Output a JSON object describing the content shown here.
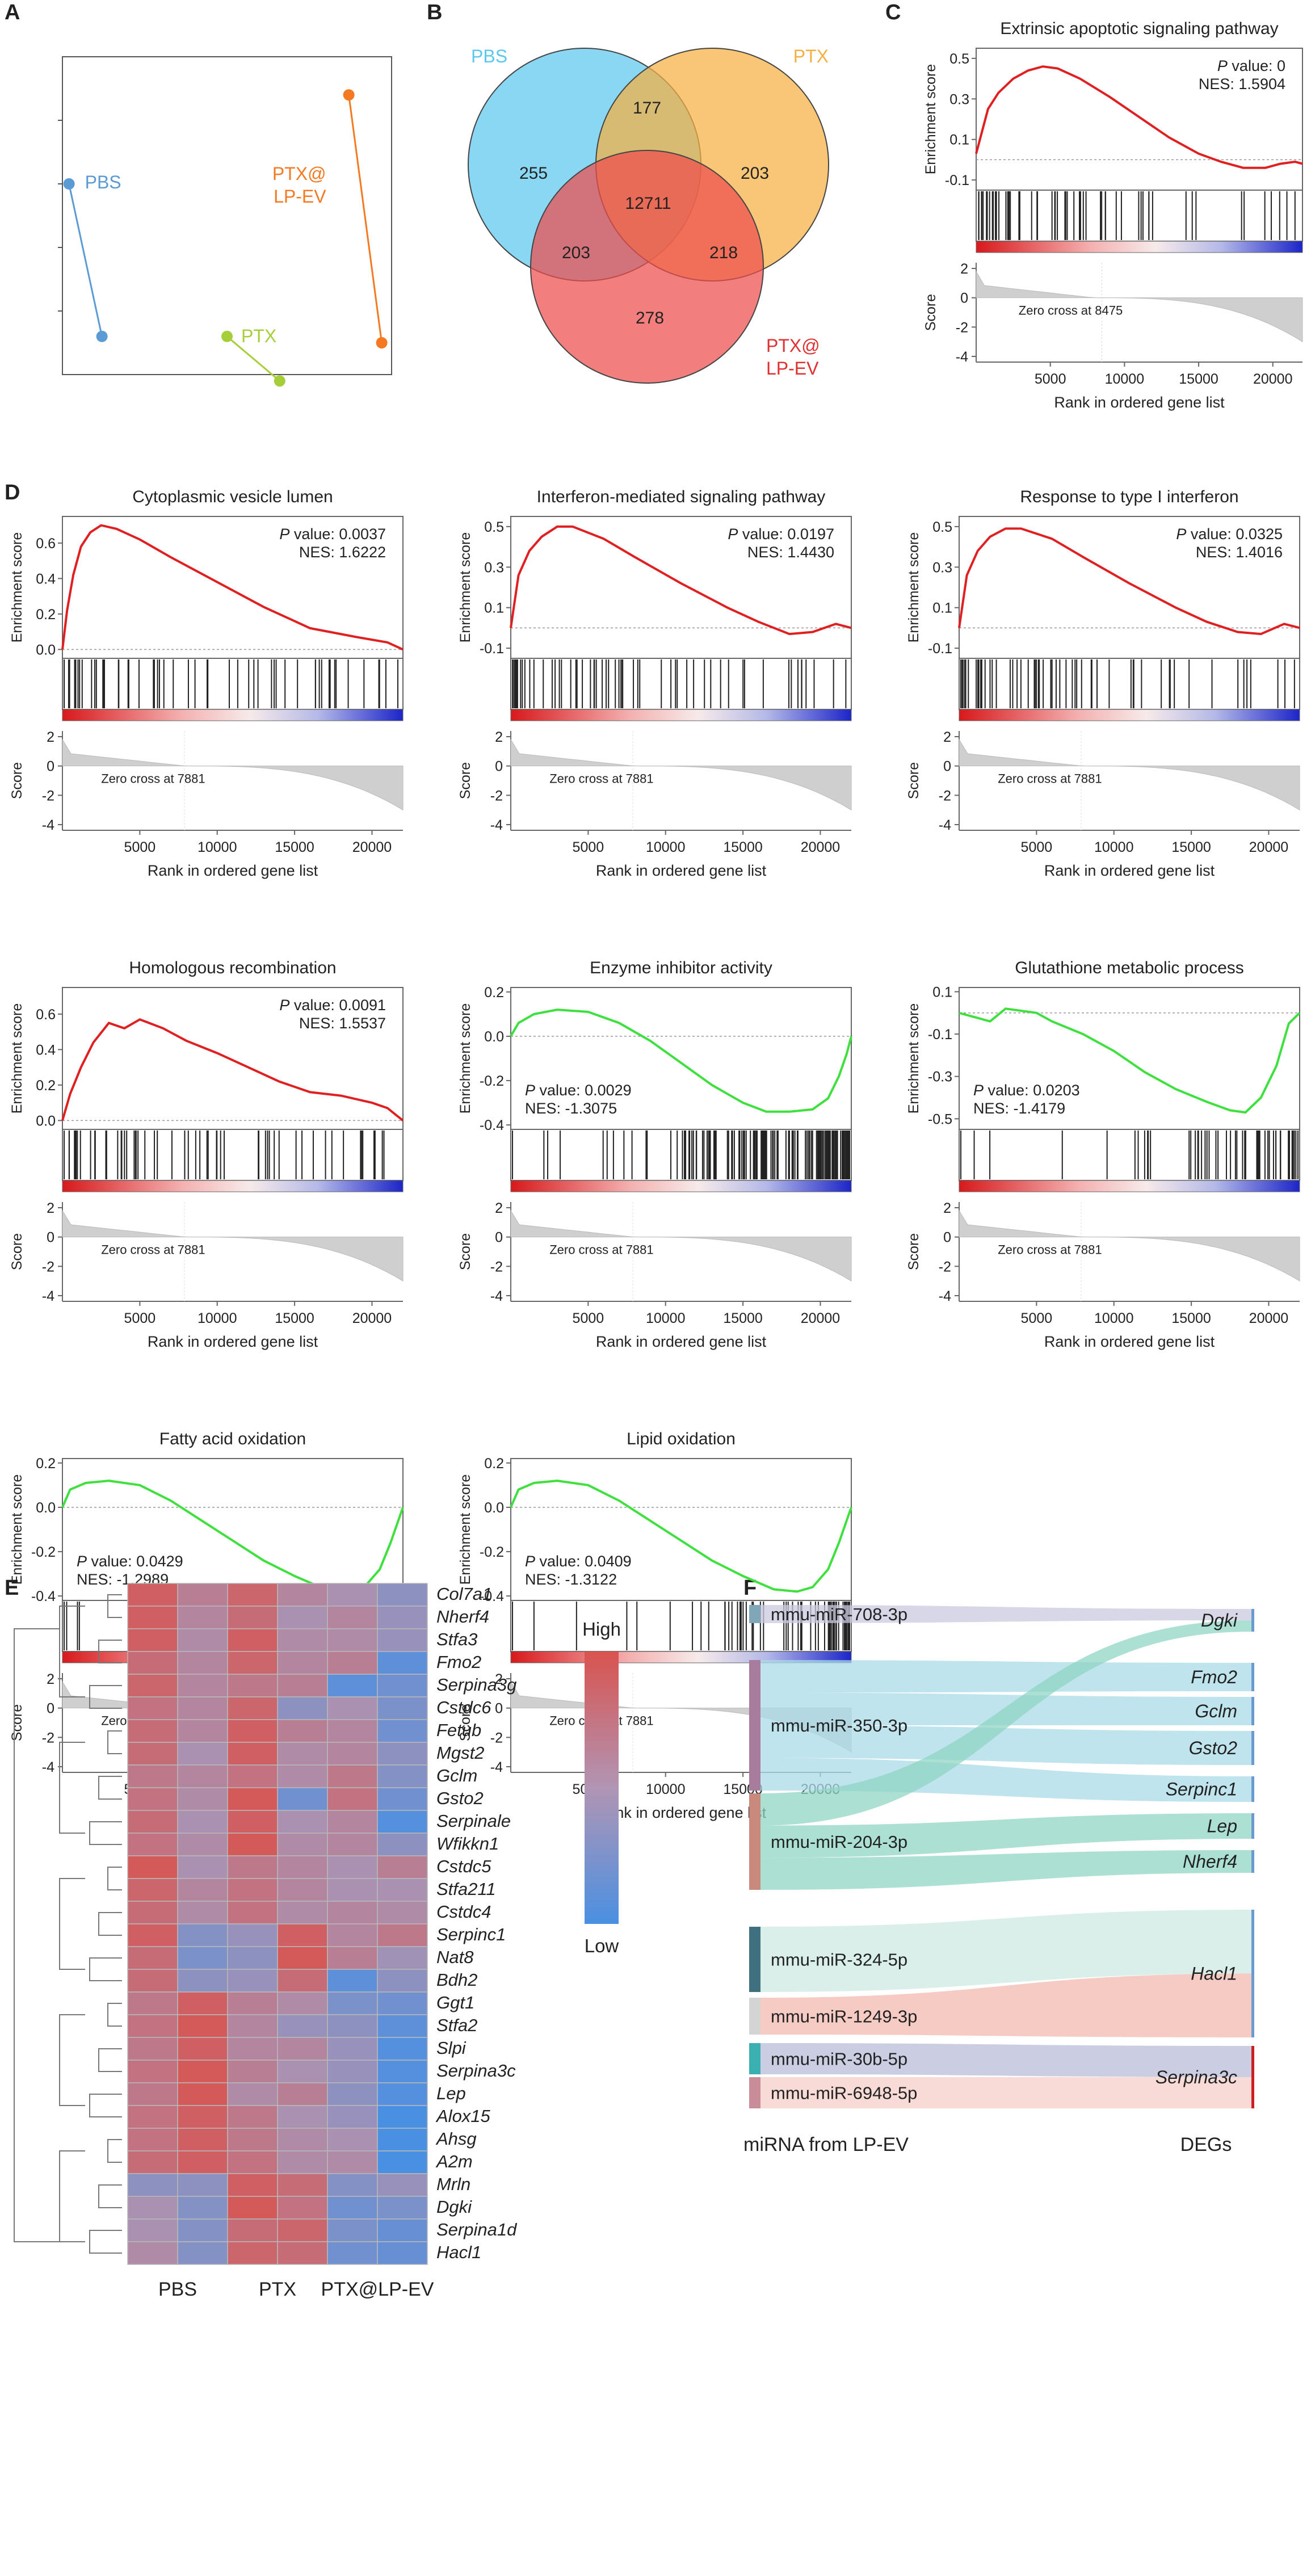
{
  "panel_labels": [
    "A",
    "B",
    "C",
    "D",
    "E",
    "F"
  ],
  "gsea_common": {
    "xlabel": "Rank in ordered gene list",
    "ylabel_es": "Enrichment score",
    "ylabel_score": "Score",
    "pval_label": "P value:",
    "nes_label": "NES:",
    "xticks": [
      5000,
      10000,
      15000,
      20000
    ],
    "score_ticks": [
      2,
      0,
      -2,
      -4
    ],
    "rank_max": 22000
  },
  "chart_data": [
    {
      "type": "scatter",
      "panel": "A",
      "series": [
        {
          "name": "PBS",
          "color": "#5b9bd5",
          "x": [
            0.02,
            0.12
          ],
          "y": [
            0.6,
            0.12
          ]
        },
        {
          "name": "PTX",
          "color": "#a6ce39",
          "x": [
            0.5,
            0.66
          ],
          "y": [
            0.12,
            -0.02
          ]
        },
        {
          "name": "PTX@\nLP-EV",
          "color": "#f47920",
          "x": [
            0.87,
            0.97
          ],
          "y": [
            0.88,
            0.1
          ]
        }
      ]
    },
    {
      "type": "venn",
      "panel": "B",
      "sets": [
        {
          "name": "PBS",
          "color": "#5bc8ee",
          "only": 255
        },
        {
          "name": "PTX",
          "color": "#f5b041",
          "only": 203
        },
        {
          "name": "PTX@\nLP-EV",
          "color": "#ef4c4c",
          "only": 278
        }
      ],
      "intersections": {
        "PBS_PTX": 177,
        "PBS_LPEV": 203,
        "PTX_LPEV": 218,
        "all": 12711
      }
    },
    {
      "type": "line",
      "panel": "C",
      "title": "Extrinsic apoptotic signaling pathway",
      "pvalue": "0",
      "nes": "1.5904",
      "zero_cross": "Zero cross at 8475",
      "color": "#e02020",
      "yticks": [
        0.5,
        0.3,
        0.1,
        -0.1
      ],
      "ylim": [
        -0.15,
        0.55
      ],
      "x": [
        0,
        800,
        1500,
        2500,
        3500,
        4500,
        5500,
        7000,
        9000,
        11000,
        13000,
        15000,
        16500,
        18000,
        19500,
        20500,
        21500,
        22000
      ],
      "y": [
        0.03,
        0.25,
        0.33,
        0.4,
        0.44,
        0.46,
        0.45,
        0.4,
        0.31,
        0.21,
        0.11,
        0.03,
        -0.01,
        -0.04,
        -0.04,
        -0.02,
        -0.01,
        -0.02
      ]
    },
    {
      "type": "line",
      "panel": "D1",
      "title": "Cytoplasmic vesicle lumen",
      "pvalue": "0.0037",
      "nes": "1.6222",
      "zero_cross": "Zero cross at 7881",
      "color": "#e02020",
      "yticks": [
        0.6,
        0.4,
        0.2,
        0.0
      ],
      "ylim": [
        -0.05,
        0.75
      ],
      "x": [
        0,
        300,
        700,
        1200,
        1800,
        2500,
        3500,
        5000,
        7000,
        10000,
        13000,
        16000,
        19000,
        21000,
        22000
      ],
      "y": [
        0.0,
        0.22,
        0.42,
        0.58,
        0.66,
        0.7,
        0.68,
        0.62,
        0.52,
        0.38,
        0.24,
        0.12,
        0.07,
        0.04,
        0.0
      ]
    },
    {
      "type": "line",
      "panel": "D2",
      "title": "Interferon-mediated signaling pathway",
      "pvalue": "0.0197",
      "nes": "1.4430",
      "zero_cross": "Zero cross at 7881",
      "color": "#e02020",
      "yticks": [
        0.5,
        0.3,
        0.1,
        -0.1
      ],
      "ylim": [
        -0.15,
        0.55
      ],
      "x": [
        0,
        500,
        1200,
        2000,
        3000,
        4000,
        6000,
        8000,
        11000,
        14000,
        16000,
        18000,
        19500,
        21000,
        22000
      ],
      "y": [
        0.0,
        0.26,
        0.38,
        0.45,
        0.5,
        0.5,
        0.44,
        0.35,
        0.22,
        0.1,
        0.03,
        -0.03,
        -0.02,
        0.02,
        0.0
      ]
    },
    {
      "type": "line",
      "panel": "D3",
      "title": "Response to type I interferon",
      "pvalue": "0.0325",
      "nes": "1.4016",
      "zero_cross": "Zero cross at 7881",
      "color": "#e02020",
      "yticks": [
        0.5,
        0.3,
        0.1,
        -0.1
      ],
      "ylim": [
        -0.15,
        0.55
      ],
      "x": [
        0,
        500,
        1200,
        2000,
        3000,
        4000,
        6000,
        8000,
        11000,
        14000,
        16000,
        18000,
        19500,
        21000,
        22000
      ],
      "y": [
        0.0,
        0.26,
        0.38,
        0.45,
        0.49,
        0.49,
        0.44,
        0.35,
        0.22,
        0.1,
        0.03,
        -0.02,
        -0.03,
        0.02,
        0.0
      ]
    },
    {
      "type": "line",
      "panel": "D4",
      "title": "Homologous recombination",
      "pvalue": "0.0091",
      "nes": "1.5537",
      "zero_cross": "Zero cross at 7881",
      "color": "#e02020",
      "yticks": [
        0.6,
        0.4,
        0.2,
        0.0
      ],
      "ylim": [
        -0.05,
        0.75
      ],
      "x": [
        0,
        500,
        1200,
        2000,
        3000,
        4000,
        5000,
        6500,
        8000,
        10000,
        12000,
        14000,
        16000,
        18000,
        20000,
        21000,
        22000
      ],
      "y": [
        0.0,
        0.15,
        0.3,
        0.44,
        0.55,
        0.52,
        0.57,
        0.52,
        0.45,
        0.38,
        0.3,
        0.22,
        0.16,
        0.14,
        0.1,
        0.07,
        0.0
      ]
    },
    {
      "type": "line",
      "panel": "D5",
      "title": "Enzyme inhibitor activity",
      "pvalue": "0.0029",
      "nes": "-1.3075",
      "zero_cross": "Zero cross at 7881",
      "color": "#3ee03e",
      "yticks": [
        0.2,
        0.0,
        -0.2,
        -0.4
      ],
      "ylim": [
        -0.42,
        0.22
      ],
      "x": [
        0,
        500,
        1500,
        3000,
        5000,
        7000,
        9000,
        11000,
        13000,
        15000,
        16500,
        18000,
        19500,
        20500,
        21200,
        21700,
        22000
      ],
      "y": [
        0.0,
        0.06,
        0.1,
        0.12,
        0.11,
        0.06,
        -0.02,
        -0.12,
        -0.22,
        -0.3,
        -0.34,
        -0.34,
        -0.33,
        -0.28,
        -0.18,
        -0.08,
        0.0
      ]
    },
    {
      "type": "line",
      "panel": "D6",
      "title": "Glutathione metabolic process",
      "pvalue": "0.0203",
      "nes": "-1.4179",
      "zero_cross": "Zero cross at 7881",
      "color": "#3ee03e",
      "yticks": [
        0.1,
        -0.1,
        -0.3,
        -0.5
      ],
      "ylim": [
        -0.55,
        0.12
      ],
      "x": [
        0,
        1000,
        2000,
        3000,
        4000,
        5000,
        6000,
        8000,
        10000,
        12000,
        14000,
        16000,
        17500,
        18500,
        19500,
        20500,
        21300,
        22000
      ],
      "y": [
        0.0,
        -0.02,
        -0.04,
        0.02,
        0.01,
        0.0,
        -0.04,
        -0.1,
        -0.18,
        -0.28,
        -0.36,
        -0.42,
        -0.46,
        -0.47,
        -0.4,
        -0.25,
        -0.05,
        0.0
      ]
    },
    {
      "type": "line",
      "panel": "D7",
      "title": "Fatty acid oxidation",
      "pvalue": "0.0429",
      "nes": "-1.2989",
      "zero_cross": "Zero cross at 7881",
      "color": "#3ee03e",
      "yticks": [
        0.2,
        0.0,
        -0.2,
        -0.4
      ],
      "ylim": [
        -0.42,
        0.22
      ],
      "x": [
        0,
        500,
        1500,
        3000,
        5000,
        7000,
        9000,
        11000,
        13000,
        15000,
        17000,
        18500,
        19500,
        20500,
        21200,
        21700,
        22000
      ],
      "y": [
        0.0,
        0.08,
        0.11,
        0.12,
        0.1,
        0.03,
        -0.06,
        -0.15,
        -0.24,
        -0.31,
        -0.37,
        -0.38,
        -0.36,
        -0.28,
        -0.16,
        -0.06,
        0.0
      ]
    },
    {
      "type": "line",
      "panel": "D8",
      "title": "Lipid oxidation",
      "pvalue": "0.0409",
      "nes": "-1.3122",
      "zero_cross": "Zero cross at 7881",
      "color": "#3ee03e",
      "yticks": [
        0.2,
        0.0,
        -0.2,
        -0.4
      ],
      "ylim": [
        -0.42,
        0.22
      ],
      "x": [
        0,
        500,
        1500,
        3000,
        5000,
        7000,
        9000,
        11000,
        13000,
        15000,
        17000,
        18500,
        19500,
        20500,
        21200,
        21700,
        22000
      ],
      "y": [
        0.0,
        0.08,
        0.11,
        0.12,
        0.1,
        0.03,
        -0.06,
        -0.15,
        -0.24,
        -0.31,
        -0.37,
        -0.38,
        -0.36,
        -0.28,
        -0.16,
        -0.06,
        0.0
      ]
    },
    {
      "type": "heatmap",
      "panel": "E",
      "xlabel_groups": [
        "PBS",
        "PTX",
        "PTX@LP-EV"
      ],
      "legend_high": "High",
      "legend_low": "Low",
      "high_color": "#d9534f",
      "low_color": "#4a90e2",
      "rows": [
        "Col7a1",
        "Nherf4",
        "Stfa3",
        "Fmo2",
        "Serpina3g",
        "Cstdc6",
        "Fetub",
        "Mgst2",
        "Gclm",
        "Gsto2",
        "Serpinale",
        "Wfikkn1",
        "Cstdc5",
        "Stfa211",
        "Cstdc4",
        "Serpinc1",
        "Nat8",
        "Bdh2",
        "Ggt1",
        "Stfa2",
        "Slpi",
        "Serpina3c",
        "Lep",
        "Alox15",
        "Ahsg",
        "A2m",
        "Mrln",
        "Dgki",
        "Serpina1d",
        "Hacl1"
      ],
      "values": [
        [
          0.8,
          0.3,
          0.7,
          0.2,
          0.0,
          -0.3
        ],
        [
          0.8,
          0.2,
          0.6,
          0.0,
          0.2,
          -0.2
        ],
        [
          0.8,
          0.1,
          0.8,
          0.1,
          0.1,
          -0.2
        ],
        [
          0.6,
          0.2,
          0.7,
          0.2,
          0.3,
          -0.8
        ],
        [
          0.7,
          0.2,
          0.4,
          0.3,
          -0.8,
          -0.6
        ],
        [
          0.5,
          0.2,
          0.7,
          -0.3,
          0.0,
          -0.5
        ],
        [
          0.6,
          0.2,
          0.8,
          0.3,
          0.2,
          -0.6
        ],
        [
          0.6,
          0.0,
          0.8,
          0.1,
          0.2,
          -0.3
        ],
        [
          0.4,
          0.2,
          0.5,
          0.1,
          0.4,
          -0.4
        ],
        [
          0.5,
          0.1,
          0.9,
          -0.6,
          0.5,
          -0.6
        ],
        [
          0.6,
          0.0,
          0.8,
          0.0,
          0.2,
          -0.9
        ],
        [
          0.5,
          0.1,
          0.9,
          0.1,
          0.2,
          -0.3
        ],
        [
          0.9,
          0.0,
          0.4,
          0.2,
          0.0,
          0.3
        ],
        [
          0.7,
          0.2,
          0.5,
          0.2,
          0.0,
          0.0
        ],
        [
          0.6,
          0.1,
          0.5,
          0.1,
          0.2,
          0.1
        ],
        [
          0.8,
          -0.4,
          -0.2,
          0.8,
          0.2,
          0.4
        ],
        [
          0.6,
          -0.5,
          -0.3,
          0.9,
          0.3,
          -0.1
        ],
        [
          0.6,
          -0.3,
          -0.2,
          0.6,
          -0.8,
          -0.3
        ],
        [
          0.4,
          0.8,
          0.3,
          0.1,
          -0.5,
          -0.6
        ],
        [
          0.5,
          0.9,
          0.2,
          -0.2,
          -0.3,
          -0.8
        ],
        [
          0.4,
          0.8,
          0.2,
          0.2,
          -0.2,
          -0.9
        ],
        [
          0.5,
          0.9,
          0.3,
          0.0,
          -0.2,
          -0.9
        ],
        [
          0.4,
          0.9,
          0.1,
          0.3,
          -0.3,
          -0.9
        ],
        [
          0.5,
          0.8,
          0.4,
          0.0,
          -0.2,
          -1.0
        ],
        [
          0.5,
          0.8,
          0.4,
          0.1,
          0.0,
          -1.0
        ],
        [
          0.6,
          0.8,
          0.5,
          0.1,
          0.1,
          -1.0
        ],
        [
          -0.3,
          -0.3,
          0.8,
          0.6,
          -0.4,
          -0.2
        ],
        [
          0.0,
          -0.4,
          0.9,
          0.5,
          -0.6,
          -0.5
        ],
        [
          0.0,
          -0.4,
          0.6,
          0.7,
          -0.5,
          -0.7
        ],
        [
          0.1,
          -0.4,
          0.7,
          0.6,
          -0.6,
          -0.7
        ]
      ]
    },
    {
      "type": "sankey",
      "panel": "F",
      "left_label": "miRNA from LP-EV",
      "right_label": "DEGs",
      "sources": [
        {
          "name": "mmu-miR-708-3p",
          "color": "#7fa7b8"
        },
        {
          "name": "mmu-miR-350-3p",
          "color": "#a87c9c"
        },
        {
          "name": "mmu-miR-204-3p",
          "color": "#c98a7d"
        },
        {
          "name": "mmu-miR-324-5p",
          "color": "#3e7080"
        },
        {
          "name": "mmu-miR-1249-3p",
          "color": "#d4d4d4"
        },
        {
          "name": "mmu-miR-30b-5p",
          "color": "#3ab0b0"
        },
        {
          "name": "mmu-miR-6948-5p",
          "color": "#c88d98"
        }
      ],
      "targets": [
        "Dgki",
        "Fmo2",
        "Gclm",
        "Gsto2",
        "Serpinc1",
        "Lep",
        "Nherf4",
        "Hacl1",
        "Serpina3c"
      ],
      "links": [
        [
          "mmu-miR-708-3p",
          "Dgki"
        ],
        [
          "mmu-miR-350-3p",
          "Fmo2"
        ],
        [
          "mmu-miR-350-3p",
          "Gclm"
        ],
        [
          "mmu-miR-350-3p",
          "Gsto2"
        ],
        [
          "mmu-miR-350-3p",
          "Serpinc1"
        ],
        [
          "mmu-miR-204-3p",
          "Dgki"
        ],
        [
          "mmu-miR-204-3p",
          "Lep"
        ],
        [
          "mmu-miR-204-3p",
          "Nherf4"
        ],
        [
          "mmu-miR-324-5p",
          "Hacl1"
        ],
        [
          "mmu-miR-1249-3p",
          "Hacl1"
        ],
        [
          "mmu-miR-30b-5p",
          "Serpina3c"
        ],
        [
          "mmu-miR-6948-5p",
          "Serpina3c"
        ]
      ]
    }
  ]
}
